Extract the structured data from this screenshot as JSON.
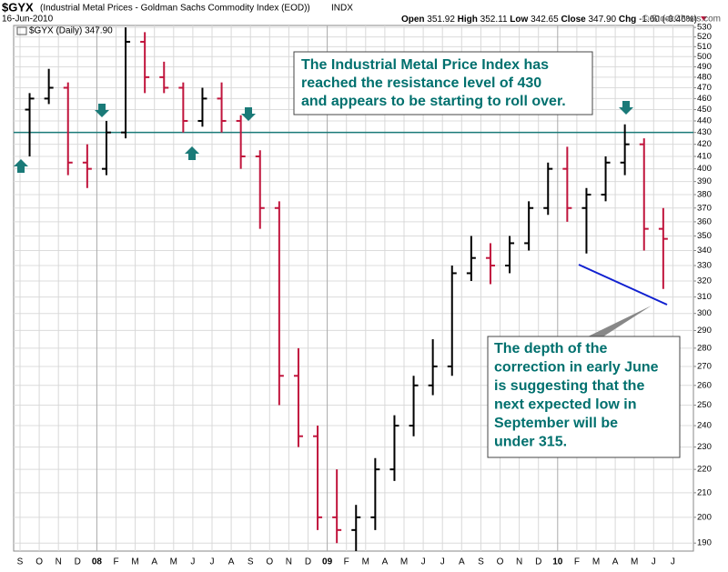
{
  "chart_data": {
    "type": "ohlc",
    "symbol": "$GYX",
    "title": "(Industrial Metal Prices - Goldman Sachs Commodity Index (EOD))",
    "exchange": "INDX",
    "date": "16-Jun-2010",
    "quote": [
      {
        "label": "Open",
        "value": "351.92"
      },
      {
        "label": "High",
        "value": "352.11"
      },
      {
        "label": "Low",
        "value": "342.65"
      },
      {
        "label": "Close",
        "value": "347.90"
      },
      {
        "label": "Chg",
        "value": "-1.60 (-0.46%)"
      }
    ],
    "credit": "© StockCharts.com",
    "legend": "$GYX (Daily) 347.90",
    "categories": [
      "S",
      "O",
      "N",
      "D",
      "08",
      "F",
      "M",
      "A",
      "M",
      "J",
      "J",
      "A",
      "S",
      "O",
      "N",
      "D",
      "09",
      "F",
      "M",
      "A",
      "M",
      "J",
      "J",
      "A",
      "S",
      "O",
      "N",
      "D",
      "10",
      "F",
      "M",
      "A",
      "M",
      "J",
      "J"
    ],
    "open": [
      450,
      460,
      470,
      405,
      400,
      430,
      515,
      480,
      470,
      440,
      460,
      440,
      410,
      370,
      265,
      235,
      200,
      195,
      200,
      220,
      240,
      260,
      270,
      325,
      335,
      330,
      345,
      370,
      400,
      370,
      380,
      405,
      420,
      355,
      null
    ],
    "high": [
      465,
      488,
      475,
      420,
      440,
      530,
      525,
      495,
      475,
      470,
      475,
      445,
      415,
      375,
      280,
      240,
      220,
      205,
      225,
      245,
      265,
      285,
      330,
      350,
      345,
      350,
      375,
      405,
      418,
      385,
      410,
      437,
      425,
      370,
      null
    ],
    "low": [
      410,
      455,
      395,
      385,
      395,
      425,
      465,
      465,
      430,
      435,
      430,
      400,
      355,
      250,
      230,
      195,
      190,
      187,
      195,
      215,
      235,
      255,
      265,
      320,
      318,
      325,
      340,
      365,
      360,
      338,
      375,
      395,
      340,
      315,
      null
    ],
    "close": [
      460,
      470,
      405,
      400,
      430,
      515,
      480,
      470,
      440,
      460,
      440,
      410,
      370,
      265,
      235,
      200,
      195,
      200,
      220,
      240,
      260,
      270,
      325,
      335,
      330,
      345,
      370,
      400,
      370,
      380,
      405,
      420,
      355,
      348,
      null
    ],
    "up_color": "#000000",
    "down_color": "#c0143c",
    "resistance": 430,
    "resistance_color": "#1a7a78",
    "log_scale": true,
    "ylim": [
      187,
      532
    ],
    "yticks": [
      190,
      200,
      210,
      220,
      230,
      240,
      250,
      260,
      270,
      280,
      290,
      300,
      310,
      320,
      330,
      340,
      350,
      360,
      370,
      380,
      390,
      400,
      410,
      420,
      430,
      440,
      450,
      460,
      470,
      480,
      490,
      500,
      510,
      520,
      530
    ],
    "grid": true,
    "annotations": [
      [
        "The Industrial Metal Price Index has",
        "reached the resistance level of 430",
        "and appears to be starting to roll over."
      ],
      [
        "The depth of the",
        "correction in early June",
        "is suggesting that the",
        "next expected low in",
        "September will be",
        "under 315."
      ]
    ]
  }
}
